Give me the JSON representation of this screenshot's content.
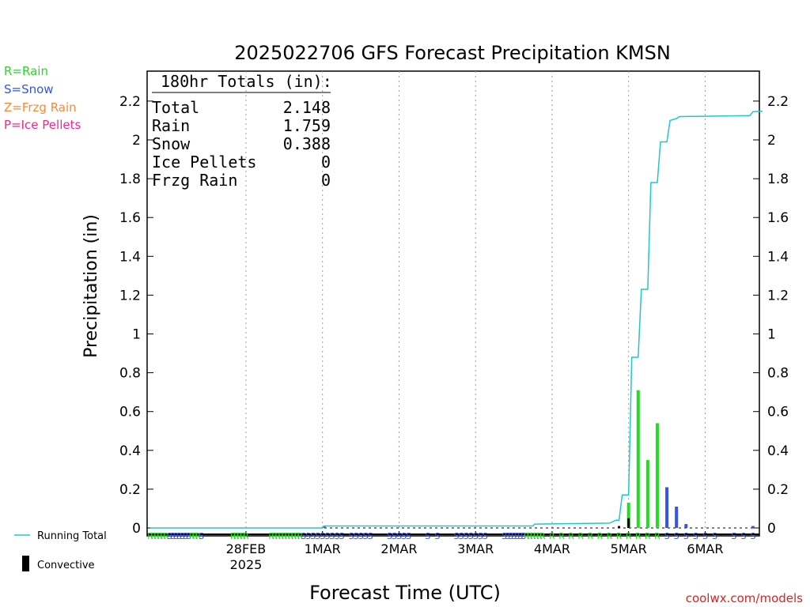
{
  "chart_data": {
    "type": "bar",
    "title": "2025022706 GFS Forecast Precipitation KMSN",
    "ylabel": "Precipitation (in)",
    "xlabel": "Forecast Time (UTC)",
    "credit": "coolwx.com/models",
    "ylim": [
      0,
      2.35
    ],
    "xlim_hours": [
      -12,
      180
    ],
    "yticks": [
      0,
      0.2,
      0.4,
      0.6,
      0.8,
      1,
      1.2,
      1.4,
      1.6,
      1.8,
      2,
      2.2
    ],
    "ytick_labels": [
      "0",
      "0.2",
      "0.4",
      "0.6",
      "0.8",
      "1",
      "1.2",
      "1.4",
      "1.6",
      "1.8",
      "2",
      "2.2"
    ],
    "date_ticks": [
      {
        "hour": 18,
        "label": "28FEB",
        "sub": "2025"
      },
      {
        "hour": 42,
        "label": "1MAR",
        "sub": ""
      },
      {
        "hour": 66,
        "label": "2MAR",
        "sub": ""
      },
      {
        "hour": 90,
        "label": "3MAR",
        "sub": ""
      },
      {
        "hour": 114,
        "label": "4MAR",
        "sub": ""
      },
      {
        "hour": 138,
        "label": "5MAR",
        "sub": ""
      },
      {
        "hour": 162,
        "label": "6MAR",
        "sub": ""
      }
    ],
    "legend_top": [
      {
        "label": "R=Rain",
        "color": "#22dd22"
      },
      {
        "label": "S=Snow",
        "color": "#3355ee"
      },
      {
        "label": "Z=Frzg Rain",
        "color": "#ff8833"
      },
      {
        "label": "P=Ice Pellets",
        "color": "#ff2288"
      }
    ],
    "legend_bottom": [
      {
        "label": "Running Total",
        "color": "#20c8c8"
      },
      {
        "label": "Convective",
        "color": "#000000"
      }
    ],
    "totals": {
      "header": "180hr Totals (in):",
      "rows": [
        {
          "name": "Total",
          "value": "2.148"
        },
        {
          "name": "Rain",
          "value": "1.759"
        },
        {
          "name": "Snow",
          "value": "0.388"
        },
        {
          "name": "Ice Pellets",
          "value": "0"
        },
        {
          "name": "Frzg Rain",
          "value": "0"
        }
      ]
    },
    "running_total": [
      {
        "h": -12,
        "v": 0
      },
      {
        "h": 42,
        "v": 0
      },
      {
        "h": 42.5,
        "v": 0.01
      },
      {
        "h": 108,
        "v": 0.01
      },
      {
        "h": 108.5,
        "v": 0.02
      },
      {
        "h": 132,
        "v": 0.025
      },
      {
        "h": 134,
        "v": 0.04
      },
      {
        "h": 135,
        "v": 0.04
      },
      {
        "h": 136,
        "v": 0.17
      },
      {
        "h": 138,
        "v": 0.17
      },
      {
        "h": 139,
        "v": 0.88
      },
      {
        "h": 141,
        "v": 0.88
      },
      {
        "h": 142,
        "v": 1.23
      },
      {
        "h": 144,
        "v": 1.23
      },
      {
        "h": 145,
        "v": 1.78
      },
      {
        "h": 147,
        "v": 1.78
      },
      {
        "h": 148,
        "v": 1.99
      },
      {
        "h": 150,
        "v": 1.99
      },
      {
        "h": 151,
        "v": 2.1
      },
      {
        "h": 153,
        "v": 2.11
      },
      {
        "h": 154,
        "v": 2.12
      },
      {
        "h": 176,
        "v": 2.125
      },
      {
        "h": 177,
        "v": 2.145
      },
      {
        "h": 180,
        "v": 2.148
      }
    ],
    "bars": [
      {
        "h": 42.5,
        "v": 0.01,
        "type": "snow"
      },
      {
        "h": 135,
        "v": 0.01,
        "type": "conv"
      },
      {
        "h": 138,
        "v": 0.13,
        "type": "rain"
      },
      {
        "h": 138,
        "v": 0.05,
        "type": "conv"
      },
      {
        "h": 141,
        "v": 0.71,
        "type": "rain"
      },
      {
        "h": 144,
        "v": 0.35,
        "type": "rain"
      },
      {
        "h": 147,
        "v": 0.54,
        "type": "rain"
      },
      {
        "h": 150,
        "v": 0.21,
        "type": "snow"
      },
      {
        "h": 153,
        "v": 0.11,
        "type": "snow"
      },
      {
        "h": 156,
        "v": 0.02,
        "type": "snow"
      },
      {
        "h": 177,
        "v": 0.01,
        "type": "snow"
      }
    ],
    "precip_type_string": "RRRRRSSSSSSSSSRSSSSRRRRRRRRRRRRSSSSSSSSSSSSSSSSSSSSSSSSSSSSSSSSSSSSSSSSSSSSSSSSSSSSSRRRRRRRRRRRRRRRRRRRRRRRRRRRRRSSSSSSSSSSSSSSSSSSSSSSSSSSSSSSSSSSSSSSSSSSSSSSS",
    "precip_type_marks": [
      {
        "from": -12,
        "to": -7,
        "step": 1,
        "t": "R"
      },
      {
        "from": -6,
        "to": 0,
        "step": 1,
        "t": "S"
      },
      {
        "from": 1,
        "to": 3,
        "step": 1,
        "t": "R"
      },
      {
        "from": 4,
        "to": 6,
        "step": 3,
        "t": "S"
      },
      {
        "from": 14,
        "to": 18,
        "step": 1,
        "t": "R"
      },
      {
        "from": 26,
        "to": 35,
        "step": 1,
        "t": "R"
      },
      {
        "from": 36,
        "to": 48,
        "step": 1.5,
        "t": "S"
      },
      {
        "from": 51,
        "to": 58,
        "step": 1.5,
        "t": "S"
      },
      {
        "from": 63,
        "to": 70,
        "step": 1.5,
        "t": "S"
      },
      {
        "from": 75,
        "to": 78,
        "step": 3,
        "t": "S"
      },
      {
        "from": 84,
        "to": 93,
        "step": 1.5,
        "t": "S"
      },
      {
        "from": 99,
        "to": 105,
        "step": 1,
        "t": "S"
      },
      {
        "from": 106,
        "to": 111,
        "step": 1,
        "t": "R"
      },
      {
        "from": 114,
        "to": 132,
        "step": 3,
        "t": "R"
      },
      {
        "from": 135,
        "to": 147,
        "step": 3,
        "t": "R"
      },
      {
        "from": 150,
        "to": 165,
        "step": 3,
        "t": "S"
      },
      {
        "from": 171,
        "to": 180,
        "step": 3,
        "t": "S"
      }
    ]
  }
}
